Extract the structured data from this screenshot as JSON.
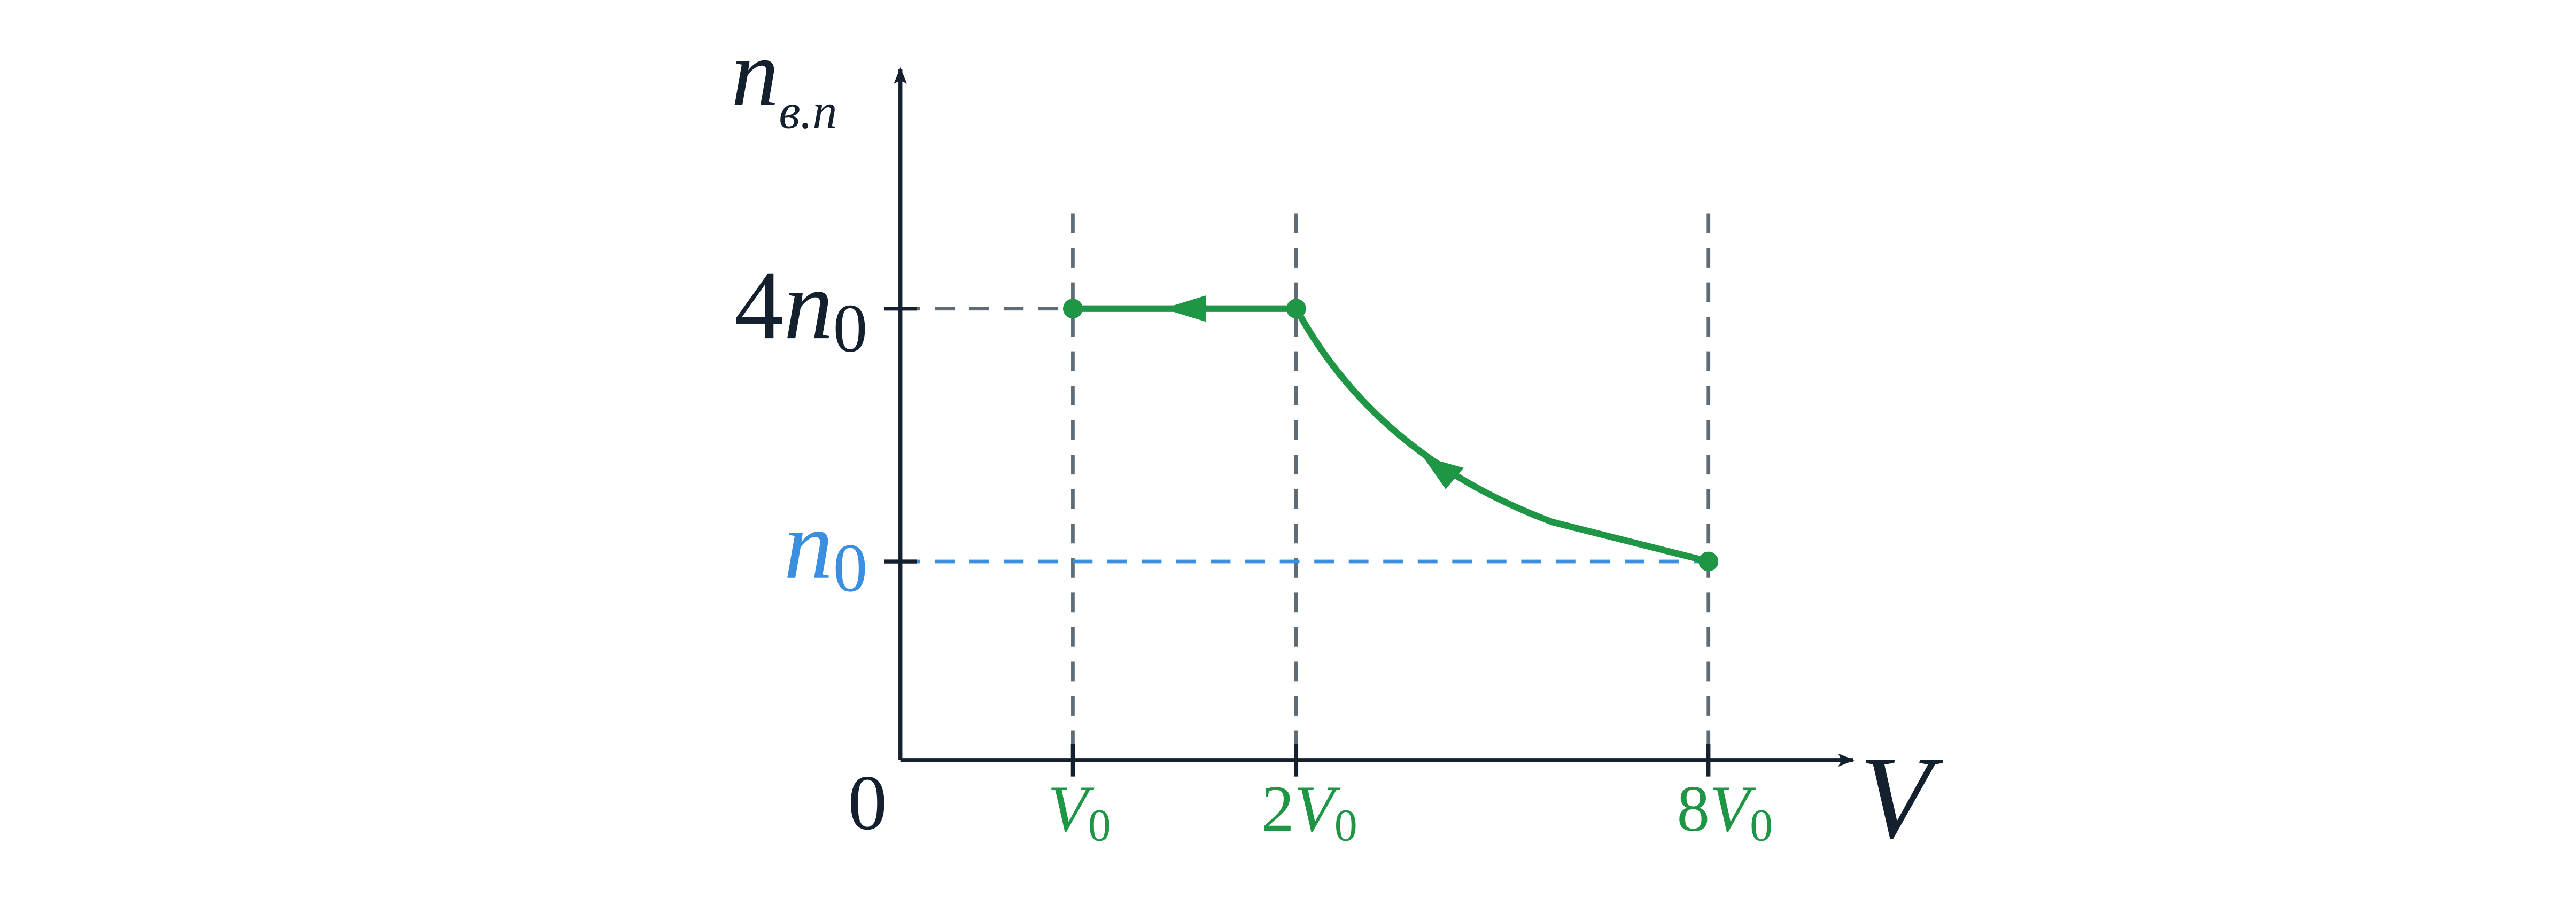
{
  "axes": {
    "y_label": {
      "var": "n",
      "sub": "в.п"
    },
    "x_label": "V",
    "origin": "0"
  },
  "y_ticks": [
    {
      "coef": "4",
      "var": "n",
      "sub": "0"
    },
    {
      "var": "n",
      "sub": "0"
    }
  ],
  "x_ticks": [
    {
      "var": "V",
      "sub": "0"
    },
    {
      "coef": "2",
      "var": "V",
      "sub": "0"
    },
    {
      "coef": "8",
      "var": "V",
      "sub": "0"
    }
  ]
}
